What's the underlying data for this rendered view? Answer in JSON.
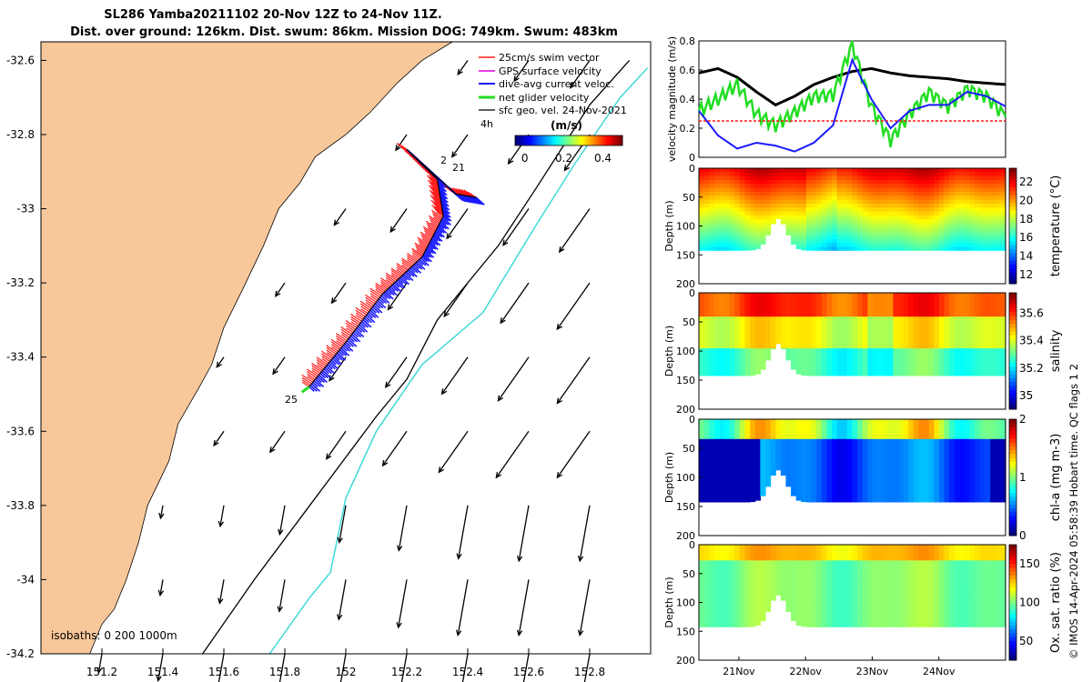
{
  "header": {
    "title_line1": "SL286 Yamba20211102 20-Nov 12Z to 24-Nov 11Z.",
    "title_line2": "Dist. over ground: 126km. Dist. swum: 86km. Mission DOG: 749km. Swum: 483km"
  },
  "side_note": "© IMOS 14-Apr-2024 05:58:39 Hobart time. QC flags 1  2",
  "colors": {
    "land": "#f9c89a",
    "swim": "#ff1a1a",
    "gps": "#e000e0",
    "dive_avg": "#1a1aff",
    "net": "#22dd22",
    "sfc": "#000000",
    "isobath_200": "#000000",
    "isobath_1000": "#3fd8d8"
  },
  "chart_data": [
    {
      "type": "map",
      "xlim": [
        151.0,
        153.0
      ],
      "ylim": [
        -34.2,
        -32.55
      ],
      "x_ticks": [
        151.2,
        151.4,
        151.6,
        151.8,
        152,
        152.2,
        152.4,
        152.6,
        152.8
      ],
      "x_tick_labels": [
        "151.2",
        "151.4",
        "151.6",
        "151.8",
        "152",
        "152.2",
        "152.4",
        "152.6",
        "152.8"
      ],
      "y_ticks": [
        -32.6,
        -32.8,
        -33,
        -33.2,
        -33.4,
        -33.6,
        -33.8,
        -34,
        -34.2
      ],
      "y_tick_labels": [
        "-32.6",
        "-32.8",
        "-33",
        "-33.2",
        "-33.4",
        "-33.6",
        "-33.8",
        "-34",
        "-34.2"
      ],
      "legend": [
        {
          "label": "25cm/s swim vector",
          "color": "#ff1a1a"
        },
        {
          "label": "GPS surface velocity",
          "color": "#e000e0"
        },
        {
          "label": "dive-avg current veloc.",
          "color": "#1a1aff"
        },
        {
          "label": "net glider velocity",
          "color": "#22dd22"
        },
        {
          "label": "sfc geo. vel. 24-Nov-2021",
          "color": "#000000"
        }
      ],
      "colorbar": {
        "title": "(m/s)",
        "ticks": [
          "0",
          "0.2",
          "0.4"
        ],
        "range": [
          -0.05,
          0.5
        ]
      },
      "isobaths_label": "isobaths: 0   200  1000m",
      "annotations": [
        "4h",
        "2",
        "21",
        "25"
      ],
      "coastline": [
        [
          151.0,
          -34.2
        ],
        [
          151.16,
          -34.2
        ],
        [
          151.2,
          -34.12
        ],
        [
          151.24,
          -34.08
        ],
        [
          151.28,
          -34.0
        ],
        [
          151.32,
          -33.9
        ],
        [
          151.35,
          -33.8
        ],
        [
          151.42,
          -33.68
        ],
        [
          151.45,
          -33.58
        ],
        [
          151.52,
          -33.48
        ],
        [
          151.56,
          -33.42
        ],
        [
          151.6,
          -33.32
        ],
        [
          151.66,
          -33.22
        ],
        [
          151.73,
          -33.1
        ],
        [
          151.78,
          -33.0
        ],
        [
          151.85,
          -32.93
        ],
        [
          151.9,
          -32.86
        ],
        [
          152.0,
          -32.8
        ],
        [
          152.08,
          -32.74
        ],
        [
          152.17,
          -32.66
        ],
        [
          152.25,
          -32.6
        ],
        [
          152.35,
          -32.55
        ]
      ],
      "isobath_200": [
        [
          151.53,
          -34.2
        ],
        [
          151.7,
          -34.0
        ],
        [
          151.9,
          -33.78
        ],
        [
          152.1,
          -33.56
        ],
        [
          152.2,
          -33.46
        ],
        [
          152.3,
          -33.3
        ],
        [
          152.5,
          -33.1
        ],
        [
          152.62,
          -32.95
        ],
        [
          152.8,
          -32.72
        ],
        [
          152.93,
          -32.6
        ]
      ],
      "isobath_1000": [
        [
          151.75,
          -34.2
        ],
        [
          151.88,
          -34.05
        ],
        [
          151.95,
          -33.98
        ],
        [
          152.0,
          -33.78
        ],
        [
          152.1,
          -33.6
        ],
        [
          152.25,
          -33.42
        ],
        [
          152.45,
          -33.28
        ],
        [
          152.62,
          -33.05
        ],
        [
          152.75,
          -32.88
        ],
        [
          152.9,
          -32.7
        ],
        [
          152.99,
          -32.62
        ]
      ],
      "glider_track": [
        [
          151.88,
          -33.48
        ],
        [
          152.0,
          -33.36
        ],
        [
          152.12,
          -33.23
        ],
        [
          152.25,
          -33.13
        ],
        [
          152.32,
          -33.02
        ],
        [
          152.3,
          -32.92
        ],
        [
          152.2,
          -32.84
        ],
        [
          152.28,
          -32.9
        ],
        [
          152.36,
          -32.96
        ],
        [
          152.43,
          -32.97
        ]
      ],
      "vector_grid_lon": [
        151.2,
        151.4,
        151.6,
        151.8,
        152.0,
        152.2,
        152.4,
        152.6,
        152.8
      ],
      "vector_grid_lat": [
        -34.2,
        -34.0,
        -33.8,
        -33.6,
        -33.4,
        -33.2,
        -33.0,
        -32.8,
        -32.6
      ]
    },
    {
      "type": "line",
      "ylabel": "velocity magnitude (m/s)",
      "ylim": [
        0,
        0.8
      ],
      "y_ticks": [
        "0",
        "0.2",
        "0.4",
        "0.6",
        "0.8"
      ],
      "x": [
        0.0,
        0.25,
        0.5,
        0.75,
        1.0,
        1.25,
        1.5,
        1.75,
        2.0,
        2.25,
        2.5,
        2.75,
        3.0,
        3.25,
        3.5,
        3.75,
        4.0
      ],
      "series": [
        {
          "color": "#000000",
          "values": [
            0.58,
            0.61,
            0.55,
            0.45,
            0.36,
            0.42,
            0.5,
            0.55,
            0.59,
            0.61,
            0.58,
            0.56,
            0.55,
            0.54,
            0.52,
            0.51,
            0.5
          ]
        },
        {
          "color": "#22dd22",
          "values": [
            0.32,
            0.4,
            0.5,
            0.3,
            0.22,
            0.31,
            0.42,
            0.43,
            0.78,
            0.35,
            0.12,
            0.3,
            0.45,
            0.35,
            0.47,
            0.42,
            0.28
          ]
        },
        {
          "color": "#1a1aff",
          "values": [
            0.32,
            0.15,
            0.06,
            0.1,
            0.08,
            0.04,
            0.1,
            0.22,
            0.67,
            0.4,
            0.2,
            0.32,
            0.36,
            0.36,
            0.45,
            0.42,
            0.35
          ]
        },
        {
          "color": "#ff1a1a",
          "values": [
            0.25,
            0.25,
            0.25,
            0.25,
            0.25,
            0.25,
            0.25,
            0.25,
            0.25,
            0.25,
            0.25,
            0.25,
            0.25,
            0.25,
            0.25,
            0.25,
            0.25
          ]
        }
      ]
    },
    {
      "type": "heatmap",
      "ylabel": "Depth (m)",
      "cbar_label": "temperature (°C)",
      "cbar_ticks": [
        "22",
        "20",
        "18",
        "16",
        "14",
        "12"
      ],
      "range": [
        11,
        23.5
      ],
      "y_ticks": [
        "0",
        "50",
        "100",
        "150",
        "200"
      ],
      "ylim": [
        0,
        200
      ]
    },
    {
      "type": "heatmap",
      "ylabel": "Depth (m)",
      "cbar_label": "salinity",
      "cbar_ticks": [
        "35.6",
        "35.4",
        "35.2",
        "35"
      ],
      "range": [
        34.9,
        35.75
      ],
      "y_ticks": [
        "0",
        "50",
        "100",
        "150",
        "200"
      ],
      "ylim": [
        0,
        200
      ]
    },
    {
      "type": "heatmap",
      "ylabel": "Depth (m)",
      "cbar_label": "chl-a (mg m-3)",
      "cbar_ticks": [
        "2",
        "1",
        "0"
      ],
      "range": [
        0,
        2
      ],
      "y_ticks": [
        "0",
        "50",
        "100",
        "150",
        "200"
      ],
      "ylim": [
        0,
        200
      ]
    },
    {
      "type": "heatmap",
      "ylabel": "Depth (m)",
      "cbar_label": "Ox. sat. ratio (%)",
      "cbar_ticks": [
        "150",
        "100",
        "50"
      ],
      "range": [
        25,
        175
      ],
      "y_ticks": [
        "0",
        "50",
        "100",
        "150",
        "200"
      ],
      "ylim": [
        0,
        200
      ],
      "x_ticks": [
        "21Nov",
        "22Nov",
        "23Nov",
        "24Nov"
      ]
    }
  ]
}
